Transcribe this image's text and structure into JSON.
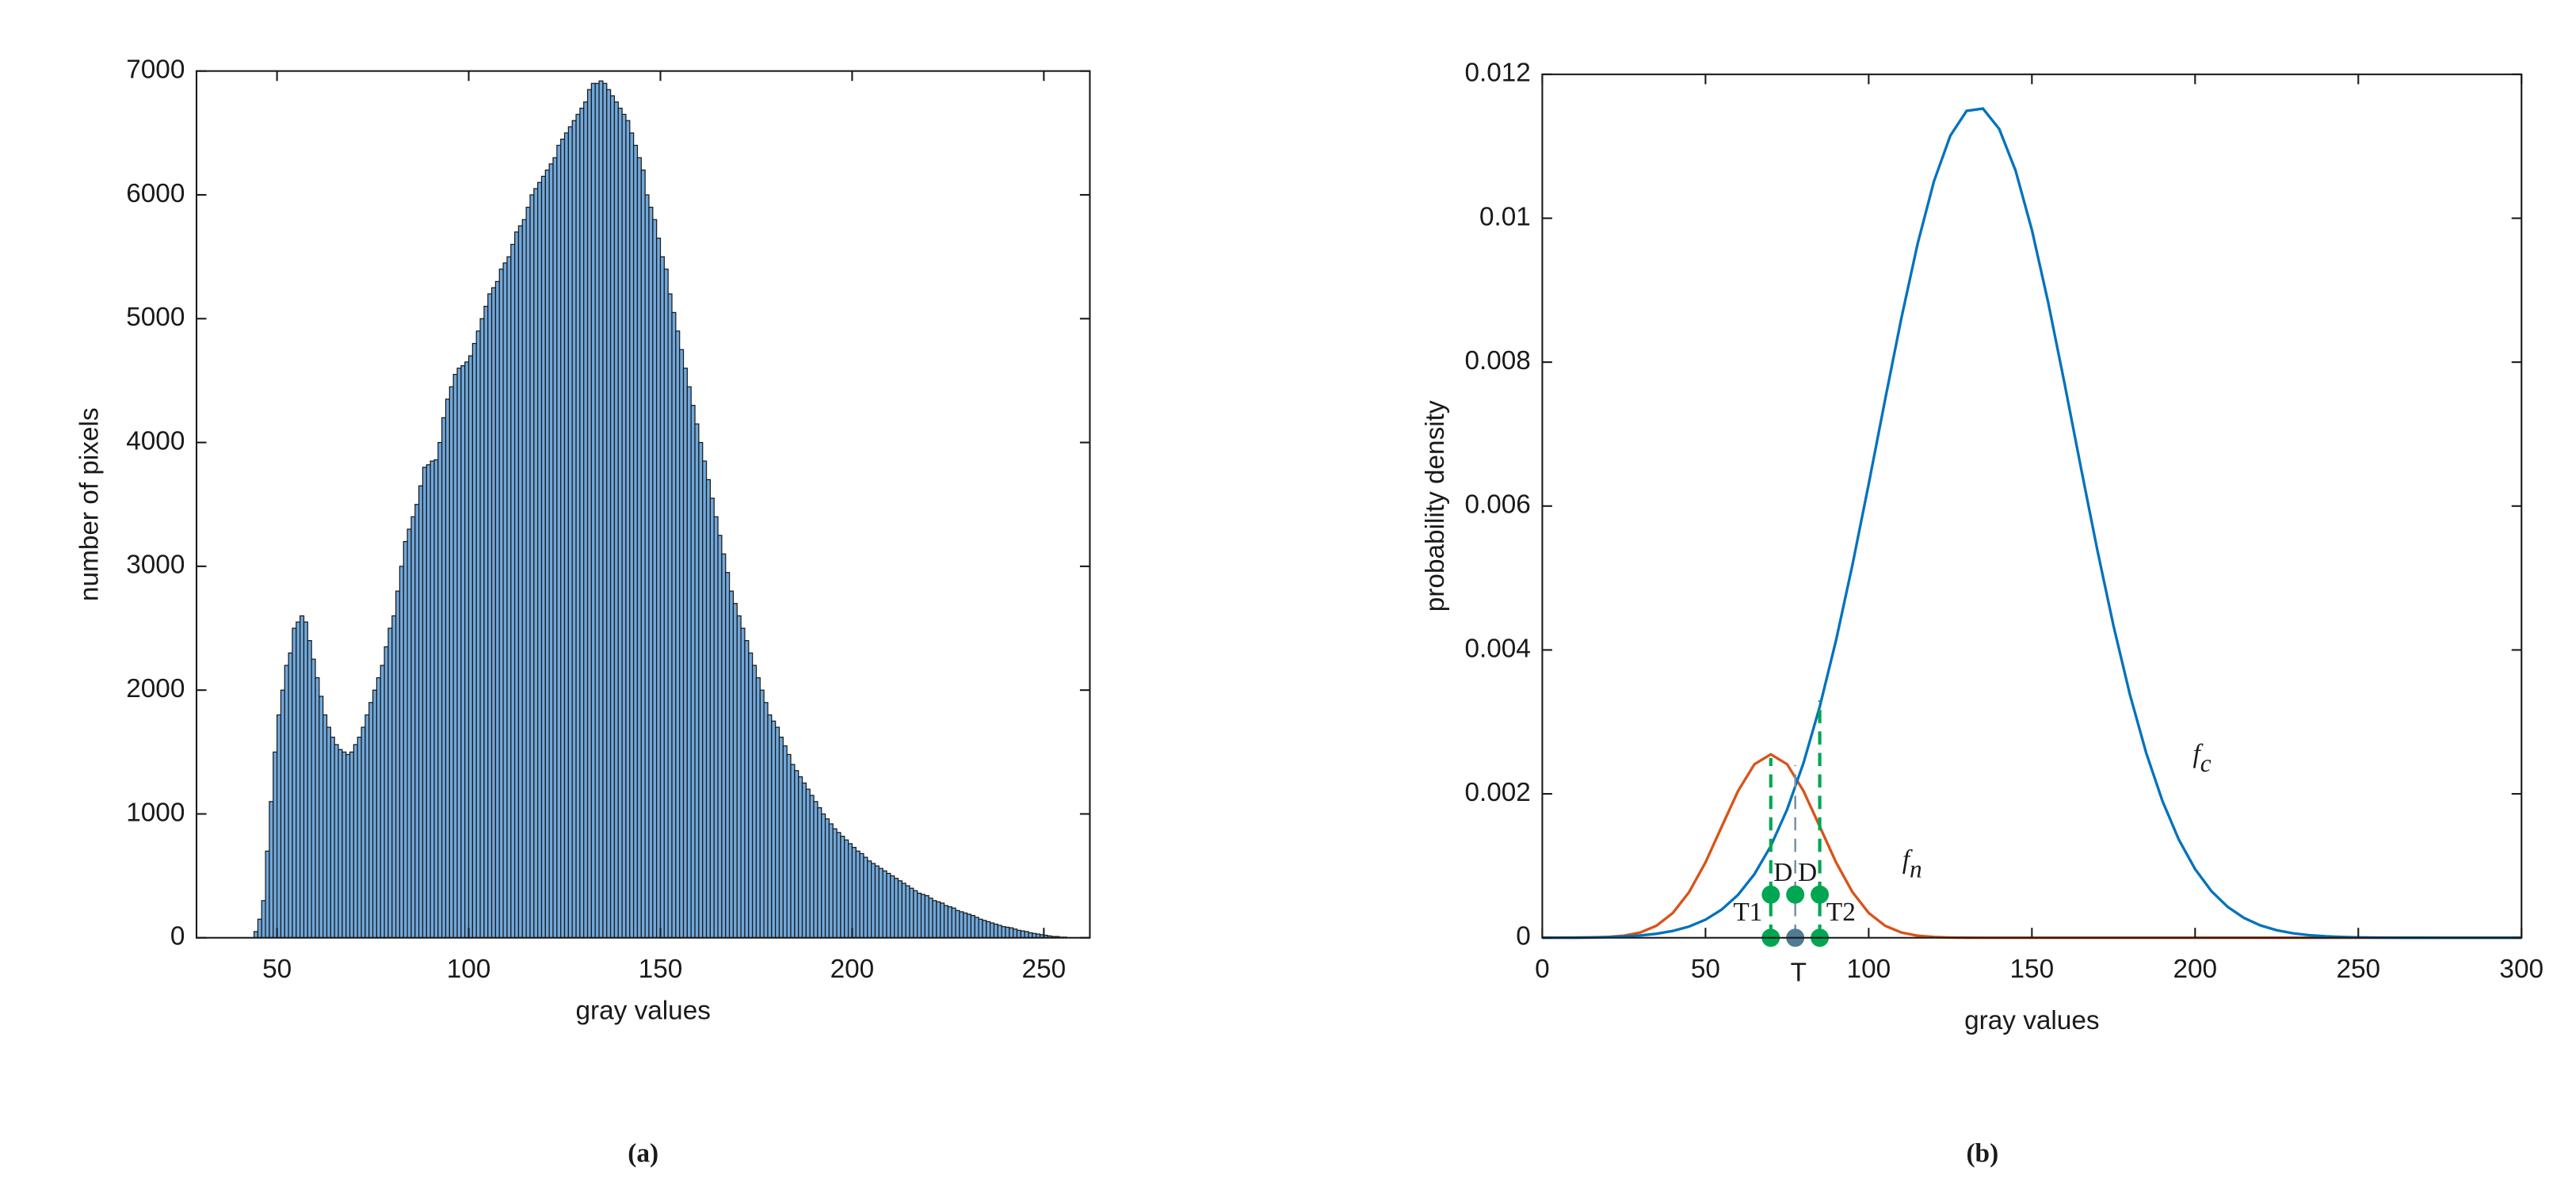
{
  "chart_data": [
    {
      "type": "histogram",
      "caption": "(a)",
      "xlabel": "gray values",
      "ylabel": "number of pixels",
      "color": "#6fa8dc",
      "edgecolor": "#1a1a1a",
      "bins": [
        44,
        45,
        46,
        47,
        48,
        49,
        50,
        51,
        52,
        53,
        54,
        55,
        56,
        57,
        58,
        59,
        60,
        61,
        62,
        63,
        64,
        65,
        66,
        67,
        68,
        69,
        70,
        71,
        72,
        73,
        74,
        75,
        76,
        77,
        78,
        79,
        80,
        81,
        82,
        83,
        84,
        85,
        86,
        87,
        88,
        89,
        90,
        91,
        92,
        93,
        94,
        95,
        96,
        97,
        98,
        99,
        100,
        101,
        102,
        103,
        104,
        105,
        106,
        107,
        108,
        109,
        110,
        111,
        112,
        113,
        114,
        115,
        116,
        117,
        118,
        119,
        120,
        121,
        122,
        123,
        124,
        125,
        126,
        127,
        128,
        129,
        130,
        131,
        132,
        133,
        134,
        135,
        136,
        137,
        138,
        139,
        140,
        141,
        142,
        143,
        144,
        145,
        146,
        147,
        148,
        149,
        150,
        151,
        152,
        153,
        154,
        155,
        156,
        157,
        158,
        159,
        160,
        161,
        162,
        163,
        164,
        165,
        166,
        167,
        168,
        169,
        170,
        171,
        172,
        173,
        174,
        175,
        176,
        177,
        178,
        179,
        180,
        181,
        182,
        183,
        184,
        185,
        186,
        187,
        188,
        189,
        190,
        191,
        192,
        193,
        194,
        195,
        196,
        197,
        198,
        199,
        200,
        201,
        202,
        203,
        204,
        205,
        206,
        207,
        208,
        209,
        210,
        211,
        212,
        213,
        214,
        215,
        216,
        217,
        218,
        219,
        220,
        221,
        222,
        223,
        224,
        225,
        226,
        227,
        228,
        229,
        230,
        231,
        232,
        233,
        234,
        235,
        236,
        237,
        238,
        239,
        240,
        241,
        242,
        243,
        244,
        245,
        246,
        247,
        248,
        249,
        250,
        251,
        252,
        253,
        254,
        255,
        256
      ],
      "values": [
        50,
        150,
        300,
        700,
        1100,
        1500,
        1800,
        2000,
        2200,
        2300,
        2500,
        2550,
        2600,
        2550,
        2400,
        2250,
        2100,
        1950,
        1800,
        1700,
        1620,
        1560,
        1520,
        1500,
        1480,
        1500,
        1560,
        1620,
        1700,
        1800,
        1900,
        2000,
        2100,
        2200,
        2350,
        2500,
        2600,
        2800,
        3000,
        3200,
        3300,
        3400,
        3500,
        3650,
        3800,
        3820,
        3850,
        3860,
        4000,
        4200,
        4350,
        4450,
        4550,
        4600,
        4620,
        4650,
        4700,
        4800,
        4900,
        5000,
        5100,
        5200,
        5250,
        5300,
        5400,
        5450,
        5500,
        5600,
        5700,
        5750,
        5800,
        5900,
        6000,
        6050,
        6100,
        6150,
        6200,
        6250,
        6300,
        6400,
        6450,
        6500,
        6550,
        6600,
        6650,
        6700,
        6750,
        6850,
        6900,
        6900,
        6920,
        6900,
        6850,
        6800,
        6750,
        6700,
        6650,
        6600,
        6500,
        6400,
        6300,
        6200,
        6000,
        5900,
        5800,
        5650,
        5500,
        5400,
        5200,
        5050,
        4900,
        4750,
        4600,
        4450,
        4300,
        4150,
        4000,
        3850,
        3700,
        3550,
        3400,
        3250,
        3100,
        2950,
        2800,
        2700,
        2600,
        2500,
        2400,
        2300,
        2200,
        2100,
        2000,
        1900,
        1800,
        1750,
        1700,
        1620,
        1550,
        1480,
        1400,
        1350,
        1300,
        1250,
        1200,
        1150,
        1100,
        1050,
        1000,
        960,
        920,
        880,
        850,
        820,
        790,
        760,
        730,
        700,
        680,
        650,
        620,
        600,
        580,
        560,
        540,
        520,
        500,
        480,
        460,
        440,
        420,
        400,
        380,
        360,
        350,
        340,
        320,
        300,
        290,
        280,
        260,
        250,
        240,
        220,
        210,
        200,
        190,
        180,
        165,
        150,
        140,
        130,
        120,
        110,
        100,
        90,
        85,
        80,
        70,
        60,
        55,
        50,
        40,
        35,
        30,
        25,
        20,
        15,
        10,
        10,
        5,
        5
      ],
      "xlim": [
        29,
        262
      ],
      "ylim": [
        0,
        7000
      ],
      "xticks": [
        50,
        100,
        150,
        200,
        250
      ],
      "yticks": [
        0,
        1000,
        2000,
        3000,
        4000,
        5000,
        6000,
        7000
      ]
    },
    {
      "type": "line",
      "caption": "(b)",
      "xlabel": "gray values",
      "ylabel": "probability density",
      "x": [
        0,
        5,
        10,
        15,
        20,
        25,
        30,
        35,
        40,
        45,
        50,
        55,
        60,
        65,
        70,
        75,
        80,
        85,
        90,
        95,
        100,
        105,
        110,
        115,
        120,
        125,
        130,
        135,
        140,
        145,
        150,
        155,
        160,
        165,
        170,
        175,
        180,
        185,
        190,
        195,
        200,
        205,
        210,
        215,
        220,
        225,
        230,
        235,
        240,
        245,
        250,
        255,
        260,
        265,
        270,
        275,
        280,
        285,
        290,
        295,
        300
      ],
      "series": [
        {
          "color": "#d95319",
          "values": [
            0,
            2e-07,
            9e-07,
            3e-06,
            1e-05,
            2.83e-05,
            7.29e-05,
            0.0001676,
            0.000345,
            0.000636,
            0.001048,
            0.001547,
            0.002042,
            0.002412,
            0.00255,
            0.002412,
            0.002042,
            0.001547,
            0.001048,
            0.000636,
            0.000345,
            0.0001676,
            7.29e-05,
            2.83e-05,
            1e-05,
            3e-06,
            9e-07,
            2e-07,
            0,
            0,
            0,
            0,
            0,
            0,
            0,
            0,
            0,
            0,
            0,
            0,
            0,
            0,
            0,
            0,
            0,
            0,
            0,
            0,
            0,
            0,
            0,
            0,
            0,
            0,
            0,
            0,
            0,
            0,
            0,
            0,
            0
          ]
        },
        {
          "color": "#0072bd",
          "values": [
            6e-07,
            1.3e-06,
            2.6e-06,
            5e-06,
            9.6e-06,
            1.77e-05,
            3.18e-05,
            5.57e-05,
            9.46e-05,
            0.0001564,
            0.0002516,
            0.0003933,
            0.000598,
            0.000885,
            0.001274,
            0.001782,
            0.002426,
            0.003211,
            0.004135,
            0.005178,
            0.006307,
            0.007472,
            0.008609,
            0.009648,
            0.010515,
            0.011147,
            0.011492,
            0.011524,
            0.01124,
            0.010662,
            0.009837,
            0.008827,
            0.007704,
            0.006538,
            0.005398,
            0.004335,
            0.003385,
            0.002571,
            0.0019,
            0.001365,
            0.000954,
            0.000648,
            0.000428,
            0.000275,
            0.000172,
            0.000105,
            6.2e-05,
            3.57e-05,
            2e-05,
            1.09e-05,
            5.8e-06,
            3e-06,
            1.5e-06,
            7e-07,
            3e-07,
            0,
            0,
            0,
            0,
            0,
            0
          ]
        }
      ],
      "annotations": [
        {
          "text": "f",
          "subscript": "n"
        },
        {
          "text": "f",
          "subscript": "c"
        }
      ],
      "markers": [
        {
          "label": "T1",
          "x": 70,
          "top": 0.0025
        },
        {
          "label": "T",
          "x": 77.5,
          "top": 0.0024
        },
        {
          "label": "T2",
          "x": 85,
          "top": 0.0033
        }
      ],
      "marker_levels": [
        0,
        0.0006
      ],
      "interval_labels": [
        "D",
        "D"
      ],
      "xlim": [
        0,
        300
      ],
      "ylim": [
        0,
        0.012
      ],
      "xticks": [
        0,
        50,
        100,
        150,
        200,
        250,
        300
      ],
      "yticks": [
        0,
        0.002,
        0.004,
        0.006,
        0.008,
        0.01,
        0.012
      ]
    }
  ]
}
